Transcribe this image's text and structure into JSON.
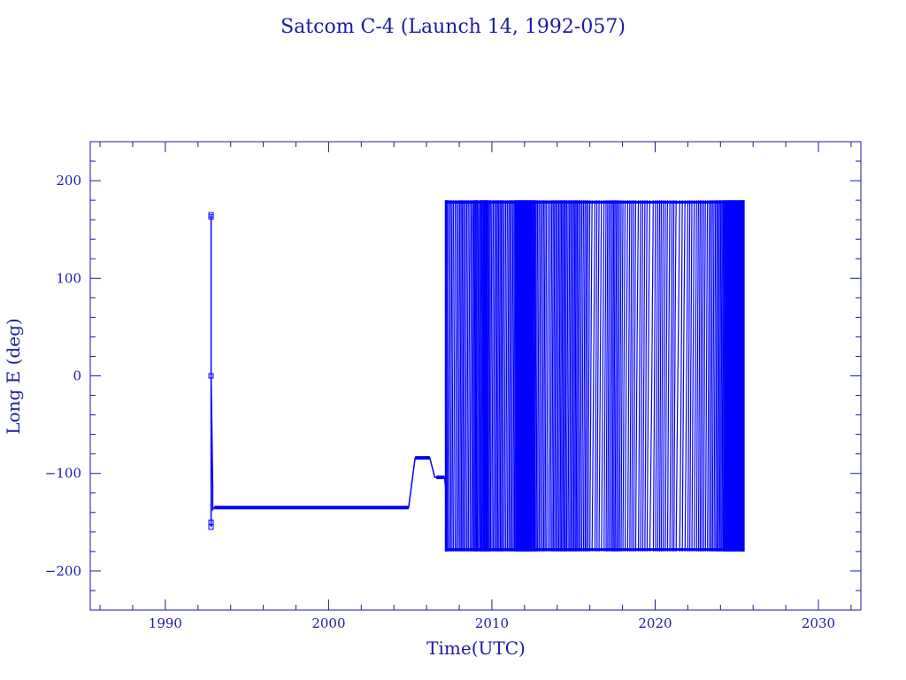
{
  "colors": {
    "axis": "#1a1aa6",
    "series": "#0000ff",
    "background": "#ffffff"
  },
  "chart_data": {
    "type": "line",
    "title": "Satcom C-4 (Launch 14, 1992-057)",
    "xlabel": "Time(UTC)",
    "ylabel": "Long E (deg)",
    "xlim": [
      1985.4,
      2032.6
    ],
    "ylim": [
      -240,
      240
    ],
    "x_ticks": [
      1990,
      2000,
      2010,
      2020,
      2030
    ],
    "x_tick_labels": [
      "1990",
      "2000",
      "2010",
      "2020",
      "2030"
    ],
    "y_ticks": [
      200,
      100,
      0,
      -100,
      -200
    ],
    "y_tick_labels": [
      "200",
      "100",
      "0",
      "−100",
      "−200"
    ],
    "grid": false,
    "legend": "none",
    "series": [
      {
        "x": [
          1992.8,
          1992.8,
          1992.8,
          1992.8,
          1992.8,
          1992.9,
          1992.9,
          1993.0,
          1995.0,
          2000.0,
          2004.0,
          2004.9,
          2005.3,
          2006.2,
          2006.5,
          2006.6,
          2007.1,
          2007.2
        ],
        "y": [
          -155,
          -150,
          165,
          163,
          0,
          -114,
          -137,
          -135,
          -135,
          -135,
          -135,
          -135,
          -84,
          -84,
          -104,
          -104,
          -104,
          -120
        ]
      }
    ],
    "drift_region": {
      "x_range": [
        2007.2,
        2025.4
      ],
      "lon_range": [
        -180,
        180
      ],
      "pattern": "longitude drift wrapping between -180 and 180 deg"
    }
  }
}
